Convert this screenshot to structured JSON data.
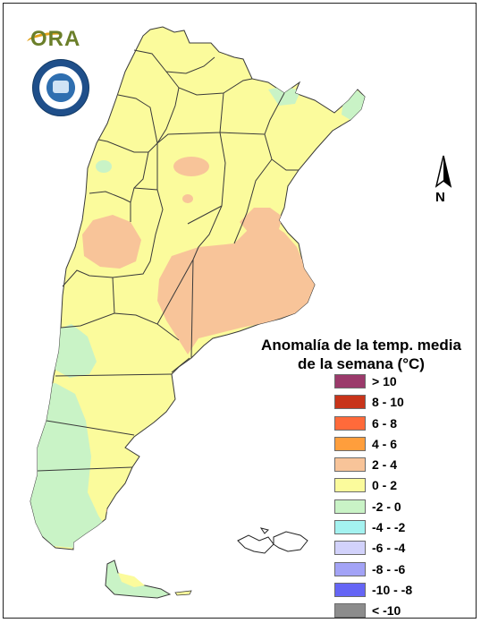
{
  "legend": {
    "title_line1": "Anomalía de la temp. media",
    "title_line2": "de la semana (°C)",
    "items": [
      {
        "label": "> 10",
        "color": "#9b3a6b"
      },
      {
        "label": "8 - 10",
        "color": "#c8341a"
      },
      {
        "label": "6 - 8",
        "color": "#ff6a3a"
      },
      {
        "label": "4 - 6",
        "color": "#ff9e3c"
      },
      {
        "label": "2 - 4",
        "color": "#f8c499"
      },
      {
        "label": "0 - 2",
        "color": "#fbfb9c"
      },
      {
        "label": "-2 - 0",
        "color": "#c9f3c6"
      },
      {
        "label": "-4 - -2",
        "color": "#a4f2f0"
      },
      {
        "label": "-6 - -4",
        "color": "#d2d2fb"
      },
      {
        "label": "-8 - -6",
        "color": "#a3a3f6"
      },
      {
        "label": "-10 - -8",
        "color": "#6565f5"
      },
      {
        "label": "< -10",
        "color": "#8c8c8c"
      }
    ]
  },
  "north_arrow": {
    "label": "N"
  },
  "logo": {
    "text": "ORA"
  },
  "seal": {
    "name": "seal-icon"
  }
}
